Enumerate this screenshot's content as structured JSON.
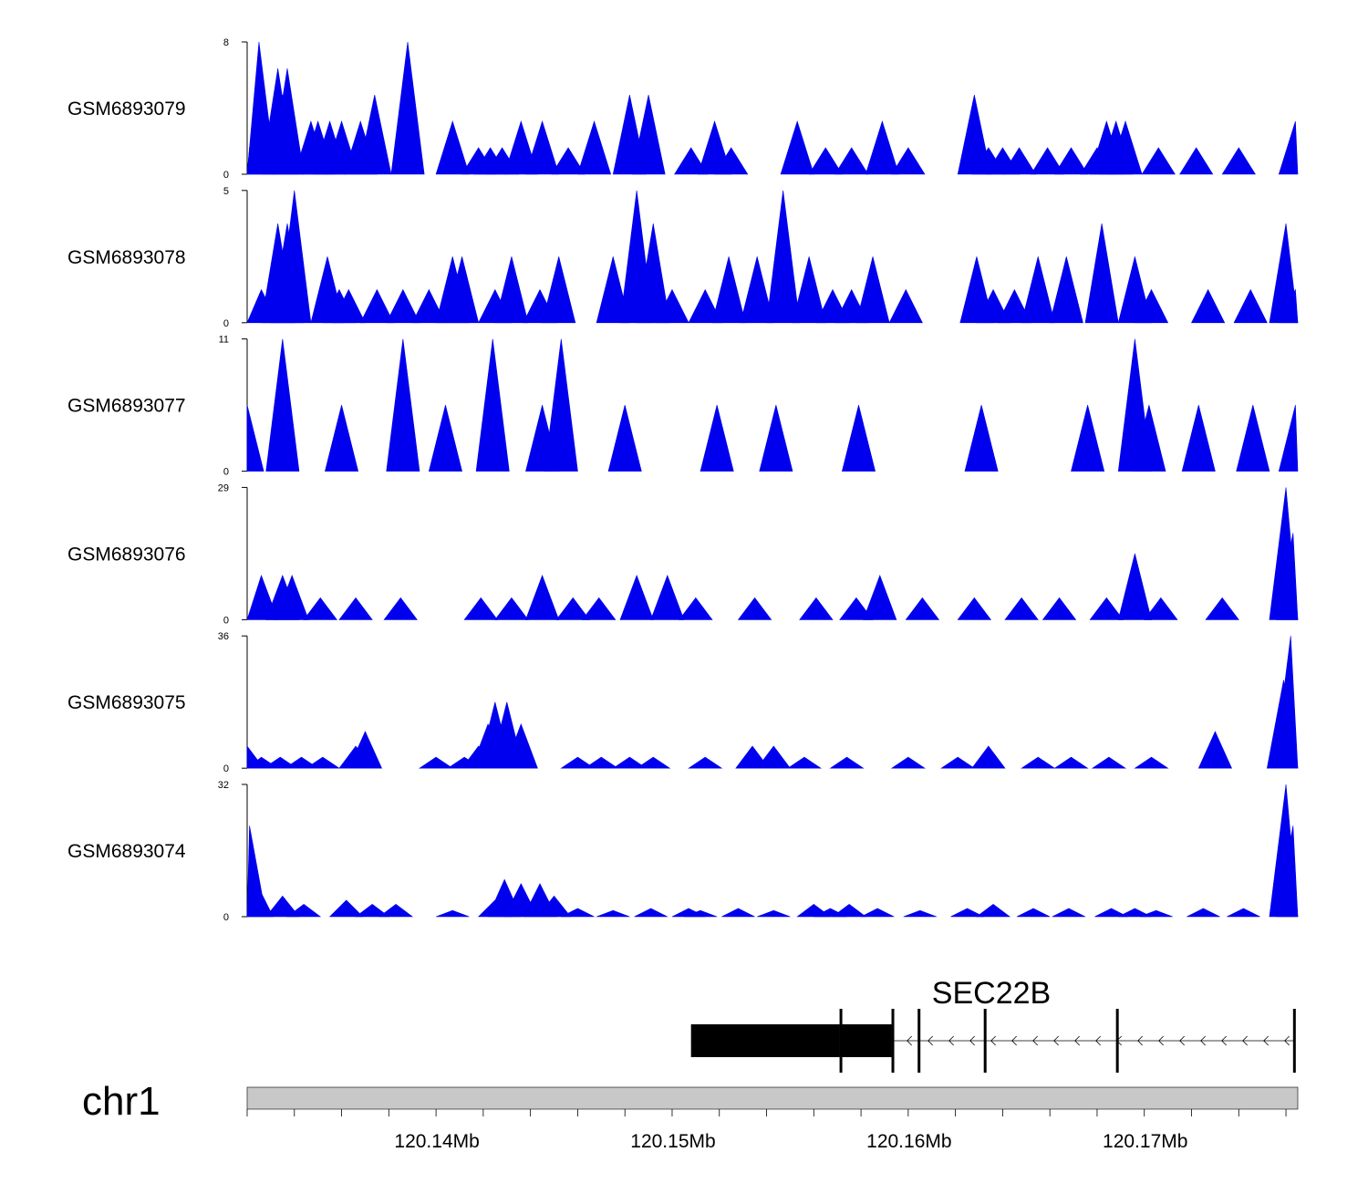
{
  "chart_data": {
    "type": "area",
    "title": "",
    "xlabel": "",
    "color": "#0000ee",
    "x_range_bp": [
      120132000,
      120176500
    ],
    "x_ticks": [
      {
        "pos": 120140000,
        "label": "120.14Mb"
      },
      {
        "pos": 120150000,
        "label": "120.15Mb"
      },
      {
        "pos": 120160000,
        "label": "120.16Mb"
      },
      {
        "pos": 120170000,
        "label": "120.17Mb"
      }
    ],
    "minor_tick_step_bp": 2000,
    "tracks": [
      {
        "name": "GSM6893079",
        "ymin": "0",
        "ymax": "8",
        "max": 8,
        "peaks": [
          [
            120132100,
            1.6
          ],
          [
            120132500,
            8
          ],
          [
            120133300,
            6.4
          ],
          [
            120133500,
            4.8
          ],
          [
            120133700,
            6.4
          ],
          [
            120134700,
            3.2
          ],
          [
            120135000,
            3.2
          ],
          [
            120135500,
            3.2
          ],
          [
            120136000,
            3.2
          ],
          [
            120136800,
            3.2
          ],
          [
            120137400,
            4.8
          ],
          [
            120138800,
            8
          ],
          [
            120140700,
            3.2
          ],
          [
            120141800,
            1.6
          ],
          [
            120142300,
            1.6
          ],
          [
            120142800,
            1.6
          ],
          [
            120143600,
            3.2
          ],
          [
            120144500,
            3.2
          ],
          [
            120145600,
            1.6
          ],
          [
            120146700,
            3.2
          ],
          [
            120148200,
            4.8
          ],
          [
            120149000,
            4.8
          ],
          [
            120150800,
            1.6
          ],
          [
            120151800,
            3.2
          ],
          [
            120152500,
            1.6
          ],
          [
            120155300,
            3.2
          ],
          [
            120156500,
            1.6
          ],
          [
            120157600,
            1.6
          ],
          [
            120158900,
            3.2
          ],
          [
            120160000,
            1.6
          ],
          [
            120162800,
            4.8
          ],
          [
            120163400,
            1.6
          ],
          [
            120164000,
            1.6
          ],
          [
            120164700,
            1.6
          ],
          [
            120165900,
            1.6
          ],
          [
            120166900,
            1.6
          ],
          [
            120168000,
            1.6
          ],
          [
            120168400,
            3.2
          ],
          [
            120168800,
            3.2
          ],
          [
            120169200,
            3.2
          ],
          [
            120170600,
            1.6
          ],
          [
            120172200,
            1.6
          ],
          [
            120174000,
            1.6
          ],
          [
            120176400,
            3.2
          ]
        ]
      },
      {
        "name": "GSM6893078",
        "ymin": "0",
        "ymax": "5",
        "max": 5,
        "peaks": [
          [
            120132600,
            1.25
          ],
          [
            120133300,
            3.75
          ],
          [
            120133700,
            3.75
          ],
          [
            120134000,
            5
          ],
          [
            120135400,
            2.5
          ],
          [
            120135900,
            1.25
          ],
          [
            120136300,
            1.25
          ],
          [
            120137500,
            1.25
          ],
          [
            120138600,
            1.25
          ],
          [
            120139700,
            1.25
          ],
          [
            120140700,
            2.5
          ],
          [
            120141100,
            2.5
          ],
          [
            120142500,
            1.25
          ],
          [
            120143200,
            2.5
          ],
          [
            120144400,
            1.25
          ],
          [
            120145200,
            2.5
          ],
          [
            120147500,
            2.5
          ],
          [
            120148500,
            5
          ],
          [
            120149200,
            3.75
          ],
          [
            120150000,
            1.25
          ],
          [
            120151400,
            1.25
          ],
          [
            120152400,
            2.5
          ],
          [
            120153600,
            2.5
          ],
          [
            120154700,
            5
          ],
          [
            120155800,
            2.5
          ],
          [
            120156800,
            1.25
          ],
          [
            120157600,
            1.25
          ],
          [
            120158500,
            2.5
          ],
          [
            120159900,
            1.25
          ],
          [
            120162900,
            2.5
          ],
          [
            120163600,
            1.25
          ],
          [
            120164500,
            1.25
          ],
          [
            120165500,
            2.5
          ],
          [
            120166700,
            2.5
          ],
          [
            120168200,
            3.75
          ],
          [
            120169600,
            2.5
          ],
          [
            120170300,
            1.25
          ],
          [
            120172700,
            1.25
          ],
          [
            120174500,
            1.25
          ],
          [
            120176000,
            3.75
          ],
          [
            120176400,
            1.25
          ]
        ]
      },
      {
        "name": "GSM6893077",
        "ymin": "0",
        "ymax": "11",
        "max": 11,
        "peaks": [
          [
            120132000,
            5.5
          ],
          [
            120133500,
            11
          ],
          [
            120136000,
            5.5
          ],
          [
            120138600,
            11
          ],
          [
            120140400,
            5.5
          ],
          [
            120142400,
            11
          ],
          [
            120144500,
            5.5
          ],
          [
            120145300,
            11
          ],
          [
            120148000,
            5.5
          ],
          [
            120151900,
            5.5
          ],
          [
            120154400,
            5.5
          ],
          [
            120157900,
            5.5
          ],
          [
            120163100,
            5.5
          ],
          [
            120167600,
            5.5
          ],
          [
            120169600,
            11
          ],
          [
            120170200,
            5.5
          ],
          [
            120172300,
            5.5
          ],
          [
            120174600,
            5.5
          ],
          [
            120176400,
            5.5
          ]
        ]
      },
      {
        "name": "GSM6893076",
        "ymin": "0",
        "ymax": "29",
        "max": 29,
        "peaks": [
          [
            120132600,
            9.7
          ],
          [
            120133500,
            9.7
          ],
          [
            120133900,
            9.7
          ],
          [
            120135100,
            4.8
          ],
          [
            120136600,
            4.8
          ],
          [
            120138500,
            4.8
          ],
          [
            120141900,
            4.8
          ],
          [
            120143200,
            4.8
          ],
          [
            120144500,
            9.7
          ],
          [
            120145800,
            4.8
          ],
          [
            120146900,
            4.8
          ],
          [
            120148500,
            9.7
          ],
          [
            120149800,
            9.7
          ],
          [
            120151000,
            4.8
          ],
          [
            120153500,
            4.8
          ],
          [
            120156100,
            4.8
          ],
          [
            120157800,
            4.8
          ],
          [
            120158800,
            9.7
          ],
          [
            120160600,
            4.8
          ],
          [
            120162800,
            4.8
          ],
          [
            120164800,
            4.8
          ],
          [
            120166400,
            4.8
          ],
          [
            120168400,
            4.8
          ],
          [
            120169600,
            14.5
          ],
          [
            120170700,
            4.8
          ],
          [
            120173300,
            4.8
          ],
          [
            120176000,
            29
          ],
          [
            120176300,
            19
          ]
        ]
      },
      {
        "name": "GSM6893075",
        "ymin": "0",
        "ymax": "36",
        "max": 36,
        "peaks": [
          [
            120132000,
            6
          ],
          [
            120132600,
            3
          ],
          [
            120133400,
            3
          ],
          [
            120134300,
            3
          ],
          [
            120135200,
            3
          ],
          [
            120136600,
            6
          ],
          [
            120137000,
            10
          ],
          [
            120140000,
            3
          ],
          [
            120141200,
            3
          ],
          [
            120141800,
            6
          ],
          [
            120142200,
            12
          ],
          [
            120142500,
            18
          ],
          [
            120143000,
            18
          ],
          [
            120143600,
            12
          ],
          [
            120146000,
            3
          ],
          [
            120147000,
            3
          ],
          [
            120148200,
            3
          ],
          [
            120149200,
            3
          ],
          [
            120151400,
            3
          ],
          [
            120153400,
            6
          ],
          [
            120154300,
            6
          ],
          [
            120155600,
            3
          ],
          [
            120157400,
            3
          ],
          [
            120160000,
            3
          ],
          [
            120162100,
            3
          ],
          [
            120163400,
            6
          ],
          [
            120165500,
            3
          ],
          [
            120166900,
            3
          ],
          [
            120168500,
            3
          ],
          [
            120170300,
            3
          ],
          [
            120173000,
            10
          ],
          [
            120175900,
            24
          ],
          [
            120176200,
            36
          ]
        ]
      },
      {
        "name": "GSM6893074",
        "ymin": "0",
        "ymax": "32",
        "max": 32,
        "peaks": [
          [
            120132100,
            22
          ],
          [
            120132400,
            8
          ],
          [
            120133500,
            5
          ],
          [
            120134400,
            3
          ],
          [
            120136200,
            4
          ],
          [
            120137300,
            3
          ],
          [
            120138300,
            3
          ],
          [
            120140700,
            1.5
          ],
          [
            120142500,
            4
          ],
          [
            120142900,
            9
          ],
          [
            120143600,
            8
          ],
          [
            120144400,
            8
          ],
          [
            120145000,
            5
          ],
          [
            120146000,
            2
          ],
          [
            120147500,
            1.5
          ],
          [
            120149100,
            2
          ],
          [
            120150700,
            2
          ],
          [
            120151200,
            1.5
          ],
          [
            120152800,
            2
          ],
          [
            120154300,
            1.5
          ],
          [
            120156000,
            3
          ],
          [
            120156700,
            2
          ],
          [
            120157500,
            3
          ],
          [
            120158700,
            2
          ],
          [
            120160500,
            1.5
          ],
          [
            120162500,
            2
          ],
          [
            120163600,
            3
          ],
          [
            120165300,
            2
          ],
          [
            120166800,
            2
          ],
          [
            120168600,
            2
          ],
          [
            120169600,
            2
          ],
          [
            120170500,
            1.5
          ],
          [
            120172500,
            2
          ],
          [
            120174200,
            2
          ],
          [
            120176000,
            32
          ],
          [
            120176300,
            22
          ]
        ]
      }
    ],
    "gene_track": {
      "name": "SEC22B",
      "strand": "-",
      "start": 120150800,
      "end": 120176400,
      "exons": [
        [
          120150800,
          120157100
        ],
        [
          120157200,
          120159300
        ],
        [
          120160400,
          120160500
        ],
        [
          120163200,
          120163300
        ],
        [
          120168800,
          120168900
        ],
        [
          120176300,
          120176400
        ]
      ]
    },
    "chromosome": "chr1"
  }
}
